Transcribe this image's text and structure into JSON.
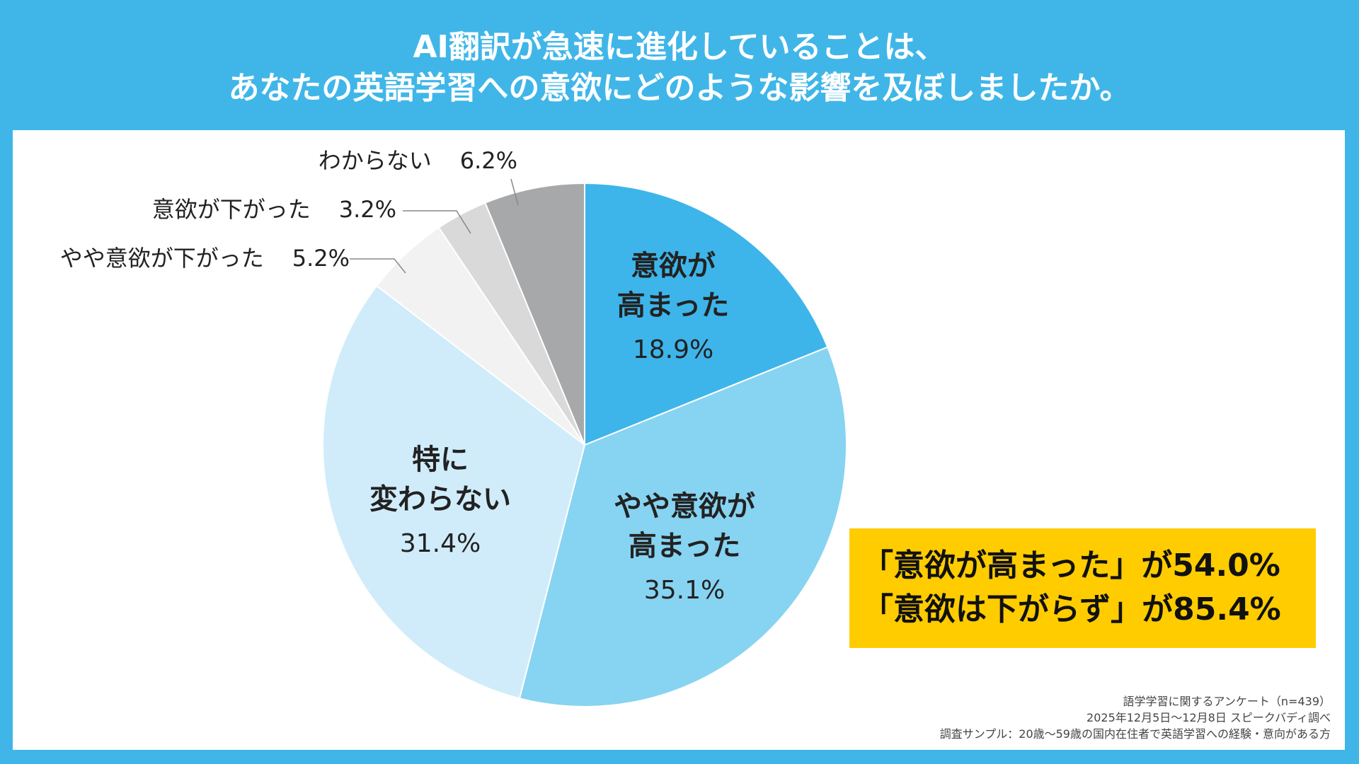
{
  "chart_data": {
    "type": "pie",
    "title": "AI翻訳が急速に進化していることは、\nあなたの英語学習への意欲にどのような影響を及ぼしましたか。",
    "categories": [
      "意欲が\n高まった",
      "やや意欲が\n高まった",
      "特に\n変わらない",
      "やや意欲が下がった",
      "意欲が下がった",
      "わからない"
    ],
    "values": [
      18.9,
      35.1,
      31.4,
      5.2,
      3.2,
      6.2
    ],
    "value_labels": [
      "18.9%",
      "35.1%",
      "31.4%",
      "5.2%",
      "3.2%",
      "6.2%"
    ],
    "colors": [
      "#3db5ea",
      "#87d3f2",
      "#d0ecfa",
      "#f2f2f2",
      "#d9d9d9",
      "#a6a8aa"
    ],
    "annotations": [
      "「意欲が高まった」が54.0%",
      "「意欲は下がらず」が85.4%"
    ],
    "footnotes": [
      "語学学習に関するアンケート（n=439）",
      "2025年12月5日～12月8日 スピークバディ調べ",
      "調査サンプル：20歳～59歳の国内在住者で英語学習への経験・意向がある方"
    ]
  }
}
